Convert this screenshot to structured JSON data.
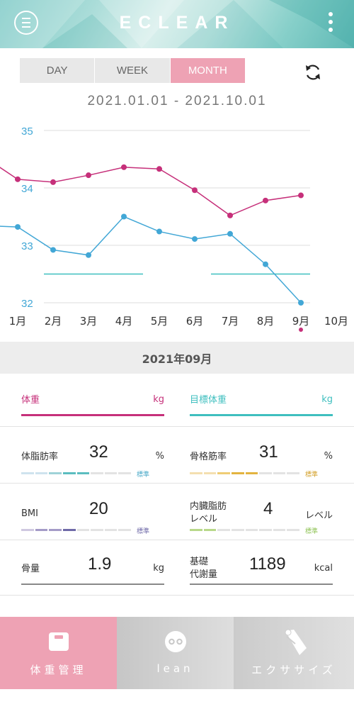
{
  "header": {
    "logo": "ECLEAR",
    "menu_icon": "menu-icon",
    "more_icon": "more-vertical-icon"
  },
  "tabs": [
    {
      "label": "DAY",
      "active": false
    },
    {
      "label": "WEEK",
      "active": false
    },
    {
      "label": "MONTH",
      "active": true
    }
  ],
  "refresh_icon": "refresh-icon",
  "date_range": "2021.01.01 - 2021.10.01",
  "chart_data": {
    "type": "line",
    "x": [
      "1月",
      "2月",
      "3月",
      "4月",
      "5月",
      "6月",
      "7月",
      "8月",
      "9月",
      "10月"
    ],
    "y_left_ticks": [
      "35",
      "34",
      "33",
      "32"
    ],
    "ylim": [
      32,
      35
    ],
    "series": [
      {
        "color": "#c6307a",
        "values": [
          34.15,
          34.1,
          34.22,
          34.36,
          34.33,
          33.96,
          33.52,
          33.78,
          33.87,
          null
        ]
      },
      {
        "color": "#42a7d6",
        "values": [
          33.32,
          32.92,
          32.83,
          33.5,
          33.24,
          33.11,
          33.2,
          32.67,
          32.0,
          null
        ]
      }
    ],
    "target_line": {
      "color": "#3fbfbf",
      "value": 32.5
    },
    "selected_month": "9月"
  },
  "month_label": "2021年09月",
  "weight": {
    "label": "体重",
    "unit": "kg",
    "color": "#c6307a"
  },
  "target_weight": {
    "label": "目標体重",
    "unit": "kg",
    "color": "#3fbfbf"
  },
  "metrics": {
    "body_fat": {
      "label": "体脂肪率",
      "value": "32",
      "unit": "%",
      "std": "標準",
      "colors": [
        "#cfe3ee",
        "#9fd2d8",
        "#5bbdc0",
        "#e3e3e3"
      ]
    },
    "skeletal_muscle": {
      "label": "骨格筋率",
      "value": "31",
      "unit": "%",
      "std": "標準",
      "colors": [
        "#f4dfb0",
        "#efcd75",
        "#e3b440",
        "#e3e3e3"
      ]
    },
    "bmi": {
      "label": "BMI",
      "value": "20",
      "unit": "",
      "std": "標準",
      "colors": [
        "#cfc8e0",
        "#a49bc7",
        "#6f6aa8",
        "#e3e3e3"
      ]
    },
    "visceral_fat": {
      "label1": "内臓脂肪",
      "label2": "レベル",
      "value": "4",
      "unit": "レベル",
      "std": "標準",
      "colors": [
        "#b8d88a",
        "#e3e3e3"
      ]
    },
    "bone_mass": {
      "label": "骨量",
      "value": "1.9",
      "unit": "kg"
    },
    "bmr": {
      "label1": "基礎",
      "label2": "代謝量",
      "value": "1189",
      "unit": "kcal"
    }
  },
  "nav": [
    {
      "label": "体重管理",
      "icon": "scale-icon",
      "active": true
    },
    {
      "label": "lean",
      "icon": "lean-icon",
      "active": false
    },
    {
      "label": "エクササイズ",
      "icon": "exercise-icon",
      "active": false
    }
  ]
}
